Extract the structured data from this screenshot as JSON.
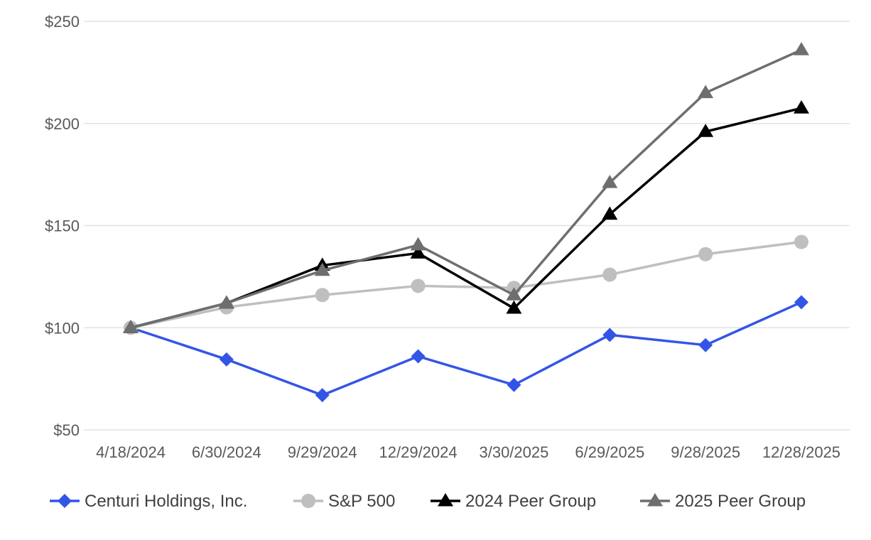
{
  "chart_data": {
    "type": "line",
    "categories": [
      "4/18/2024",
      "6/30/2024",
      "9/29/2024",
      "12/29/2024",
      "3/30/2025",
      "6/29/2025",
      "9/28/2025",
      "12/28/2025"
    ],
    "ylim": [
      50,
      250
    ],
    "yticks": [
      50,
      100,
      150,
      200,
      250
    ],
    "ytick_labels": [
      "$50",
      "$100",
      "$150",
      "$200",
      "$250"
    ],
    "grid": true,
    "legend_position": "bottom",
    "series": [
      {
        "name": "Centuri Holdings, Inc.",
        "color": "#3355e6",
        "marker": "diamond",
        "values": [
          100,
          84.5,
          67,
          86,
          72,
          96.5,
          91.5,
          112.5
        ]
      },
      {
        "name": "S&P 500",
        "color": "#bfbfbf",
        "marker": "circle",
        "values": [
          100,
          110,
          116,
          120.5,
          119.5,
          126,
          136,
          142
        ]
      },
      {
        "name": "2024 Peer Group",
        "color": "#000000",
        "marker": "triangle",
        "values": [
          100,
          112,
          130.5,
          136.5,
          109.5,
          155.5,
          196,
          207.5
        ]
      },
      {
        "name": "2025 Peer Group",
        "color": "#6e6e6e",
        "marker": "triangle",
        "values": [
          100,
          112,
          128,
          140.5,
          116,
          171,
          215,
          236
        ]
      }
    ]
  }
}
